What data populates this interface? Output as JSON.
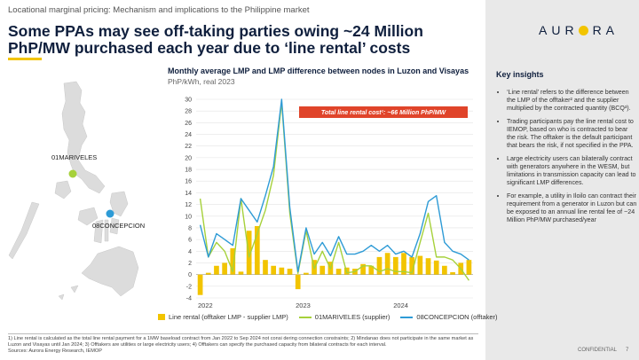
{
  "header": {
    "subtitle": "Locational marginal pricing: Mechanism and implications to the Philippine market",
    "headline": "Some PPAs may see off-taking parties owing ~24 Million PhP/MW purchased each year due to ‘line rental’ costs",
    "logo_left": "AUR",
    "logo_right": "RA"
  },
  "map": {
    "node_supplier": "01MARIVELES",
    "node_offtaker": "08CONCEPCION",
    "supplier_color": "#a6d13b",
    "offtaker_color": "#2e9bd6"
  },
  "chart_data": {
    "type": "bar+line",
    "title": "Monthly average LMP and LMP difference between nodes in Luzon and Visayas",
    "unit": "PhP/kWh, real 2023",
    "ylim": [
      -4,
      30
    ],
    "yticks": [
      -4,
      -2,
      0,
      2,
      4,
      6,
      8,
      10,
      12,
      14,
      16,
      18,
      20,
      22,
      24,
      26,
      28,
      30
    ],
    "x_labels": [
      {
        "label": "2022",
        "index": 0
      },
      {
        "label": "2023",
        "index": 12
      },
      {
        "label": "2024",
        "index": 24
      }
    ],
    "annotation": "Total line rental cost¹: ~66 Million PhP/MW",
    "grid": true,
    "series": [
      {
        "name": "Line rental (offtaker LMP - supplier LMP)",
        "type": "bar",
        "color": "#f2c400",
        "values": [
          -3.5,
          0.3,
          1.5,
          2.0,
          4.5,
          0.5,
          7.5,
          8.3,
          2.5,
          1.5,
          1.2,
          1.0,
          -2.5,
          0.3,
          2.5,
          1.5,
          2.2,
          1.0,
          1.2,
          1.0,
          1.8,
          1.5,
          3.0,
          3.7,
          3.0,
          3.7,
          3.0,
          3.2,
          2.8,
          2.4,
          1.5,
          0.4,
          2.0,
          2.5
        ]
      },
      {
        "name": "01MARIVELES (supplier)",
        "type": "line",
        "color": "#a6d13b",
        "values": [
          13.0,
          3.0,
          5.5,
          4.0,
          0.5,
          13.0,
          3.0,
          7.0,
          11.0,
          17.0,
          29.5,
          10.5,
          0.2,
          7.5,
          1.0,
          4.0,
          1.0,
          5.5,
          0.3,
          0.5,
          1.5,
          1.5,
          0.5,
          1.0,
          0.5,
          0.5,
          0.3,
          5.5,
          10.5,
          3.0,
          3.0,
          2.5,
          1.0,
          -1.0
        ]
      },
      {
        "name": "08CONCEPCION (offtaker)",
        "type": "line",
        "color": "#2e9bd6",
        "values": [
          8.5,
          3.0,
          7.0,
          6.0,
          5.0,
          13.0,
          11.0,
          9.0,
          13.5,
          18.5,
          30.0,
          11.5,
          0.5,
          8.0,
          3.5,
          5.5,
          3.2,
          6.5,
          3.5,
          3.5,
          4.0,
          5.0,
          4.0,
          5.0,
          3.5,
          4.0,
          3.0,
          7.0,
          12.5,
          13.5,
          5.5,
          4.0,
          3.5,
          2.5
        ]
      }
    ]
  },
  "insights": {
    "title": "Key insights",
    "items": [
      "‘Line rental’ refers to the difference between the LMP of the offtaker² and the supplier multiplied by the contracted quantity (BCQ³).",
      "Trading participants pay the line rental cost to IEMOP, based on who is contracted to bear the risk. The offtaker is the default participant that bears the risk, if not specified in the PPA.",
      "Large electricity users can bilaterally contract with generators anywhere in the WESM, but limitations in transmission capacity can lead to significant LMP differences.",
      "For example, a utility in Iloilo can contract their requirement from a generator in Luzon but can be exposed to an annual line rental fee of ~24 Million PhP/MW purchased/year"
    ]
  },
  "footnotes": {
    "line1": "1) Line rental is calculated as the total line rental payment for a 1MW baseload contract from Jan 2022 to Sep 2024 not consi dering connection constraints; 2) Mindanao does not participate in the same market as Luzon and Visayas until Jan 2024; 3) Offtakers are utilities or large electricity users; 4) Offtakers can specify the purchased capacity from bilateral contracts for each interval.",
    "sources": "Sources: Aurora Energy Research, IEMOP"
  },
  "footer": {
    "confidential": "CONFIDENTIAL",
    "page": "7"
  }
}
